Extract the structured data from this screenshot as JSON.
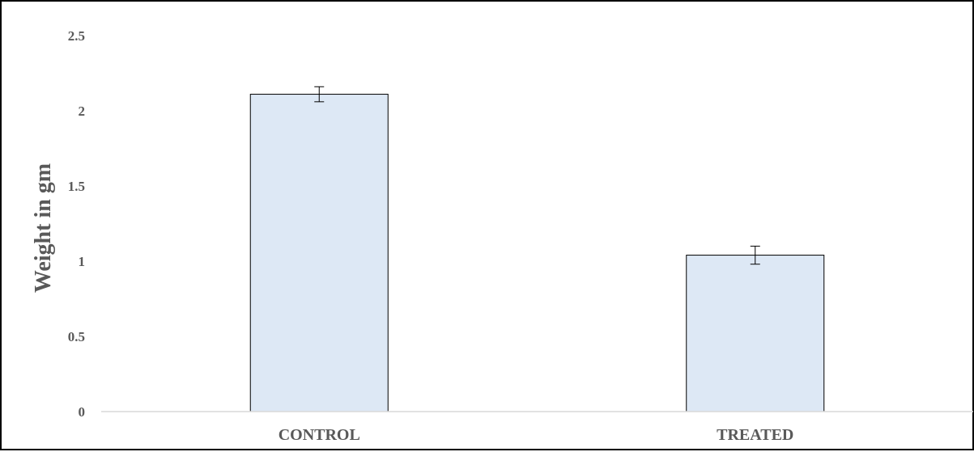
{
  "chart_data": {
    "type": "bar",
    "title": "",
    "xlabel": "",
    "ylabel": "Weight in gm",
    "categories": [
      "CONTROL",
      "TREATED"
    ],
    "values": [
      2.11,
      1.04
    ],
    "error": [
      0.05,
      0.06
    ],
    "ylim": [
      0,
      2.5
    ],
    "yticks": [
      "0",
      "0.5",
      "1",
      "1.5",
      "2",
      "2.5"
    ],
    "grid": false,
    "legend": "none",
    "colors": {
      "bar_fill": "#dde8f5",
      "bar_stroke": "#000000",
      "axis": "#d9d9d9",
      "text": "#595959"
    }
  }
}
